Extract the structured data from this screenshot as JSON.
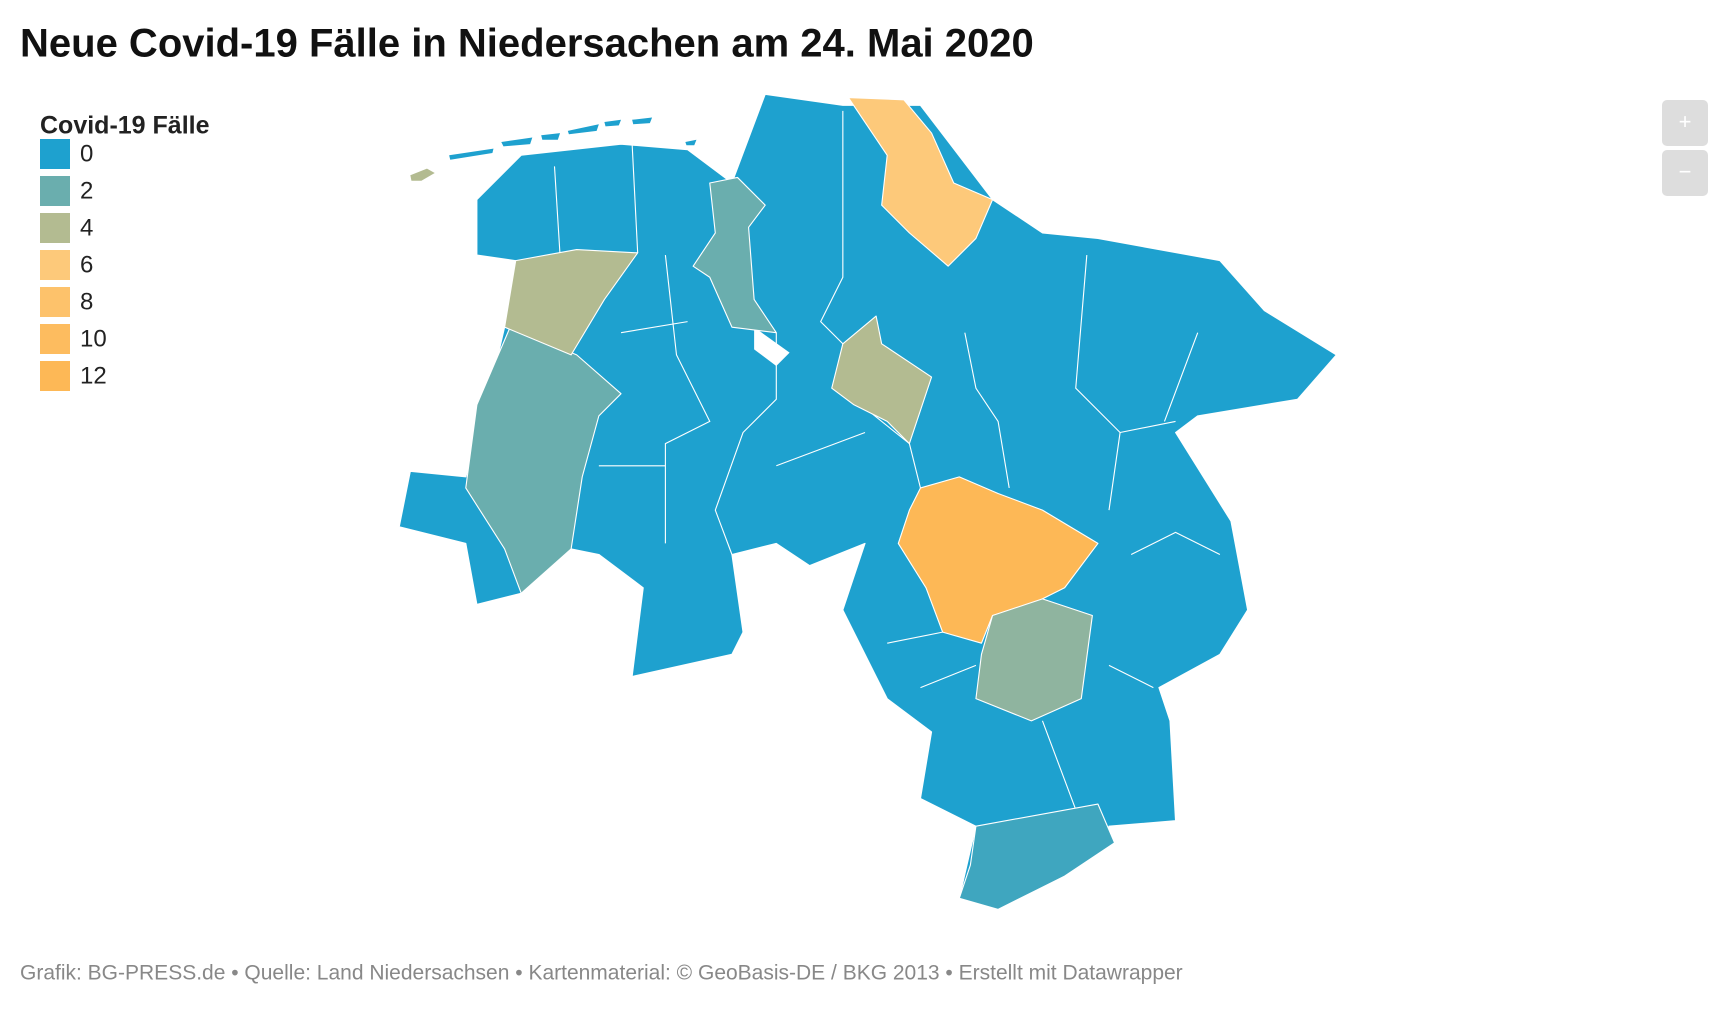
{
  "title": "Neue Covid-19 Fälle in Niedersachen am 24. Mai 2020",
  "legend": {
    "title": "Covid-19 Fälle",
    "items": [
      {
        "value": 0,
        "color": "#1ea1cf"
      },
      {
        "value": 2,
        "color": "#6aaeae"
      },
      {
        "value": 4,
        "color": "#b3bb91"
      },
      {
        "value": 6,
        "color": "#fdc97a"
      },
      {
        "value": 8,
        "color": "#fdc26b"
      },
      {
        "value": 10,
        "color": "#fdbc5f"
      },
      {
        "value": 12,
        "color": "#fdb856"
      }
    ]
  },
  "zoom": {
    "in": "+",
    "out": "−"
  },
  "footer": "Grafik: BG-PRESS.de • Quelle: Land Niedersachsen • Kartenmaterial: © GeoBasis-DE / BKG 2013 • Erstellt mit Datawrapper"
}
